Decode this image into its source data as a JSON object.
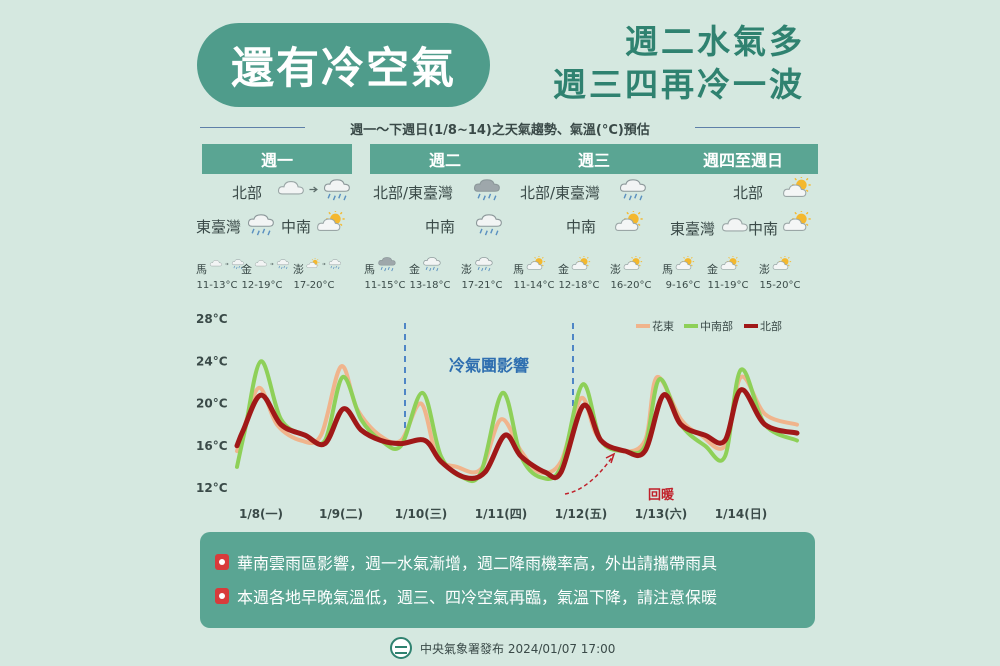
{
  "title": "還有冷空氣",
  "headline": [
    "週二水氣多",
    "週三四再冷一波"
  ],
  "subtitle": "週一～下週日(1/8~14)之天氣趨勢、氣溫(°C)預估",
  "days": [
    {
      "header": "週一",
      "regions": [
        {
          "label": "北部",
          "icons": [
            "cloud-icon",
            "arrow-icon",
            "cloud-rain-icon"
          ]
        },
        {
          "label": "東臺灣",
          "icons": [
            "cloud-rain-icon"
          ]
        },
        {
          "label": "中南",
          "icons": [
            "sun-cloud-icon"
          ]
        }
      ],
      "islands": [
        {
          "name": "馬",
          "temp": "11-13°C",
          "icons": [
            "cloud-icon",
            "arrow-icon",
            "cloud-rain-icon"
          ]
        },
        {
          "name": "金",
          "temp": "12-19°C",
          "icons": [
            "cloud-icon",
            "arrow-icon",
            "cloud-rain-icon"
          ]
        },
        {
          "name": "澎",
          "temp": "17-20°C",
          "icons": [
            "sun-cloud-icon",
            "arrow-icon",
            "cloud-rain-icon"
          ]
        }
      ]
    },
    {
      "header": "週二",
      "regions": [
        {
          "label": "北部/東臺灣",
          "icons": [
            "dark-cloud-rain-icon"
          ]
        },
        {
          "label": "中南",
          "icons": [
            "cloud-rain-icon"
          ]
        }
      ],
      "islands": [
        {
          "name": "馬",
          "temp": "11-15°C",
          "icons": [
            "dark-cloud-rain-icon"
          ]
        },
        {
          "name": "金",
          "temp": "13-18°C",
          "icons": [
            "cloud-rain-icon"
          ]
        },
        {
          "name": "澎",
          "temp": "17-21°C",
          "icons": [
            "cloud-rain-icon"
          ]
        }
      ]
    },
    {
      "header": "週三",
      "regions": [
        {
          "label": "北部/東臺灣",
          "icons": [
            "cloud-rain-icon"
          ]
        },
        {
          "label": "中南",
          "icons": [
            "sun-cloud-icon"
          ]
        }
      ],
      "islands": [
        {
          "name": "馬",
          "temp": "11-14°C",
          "icons": [
            "sun-cloud-icon"
          ]
        },
        {
          "name": "金",
          "temp": "12-18°C",
          "icons": [
            "sun-cloud-icon"
          ]
        },
        {
          "name": "澎",
          "temp": "16-20°C",
          "icons": [
            "sun-cloud-icon"
          ]
        }
      ]
    },
    {
      "header": "週四至週日",
      "regions": [
        {
          "label": "北部",
          "icons": [
            "sun-cloud-icon"
          ]
        },
        {
          "label": "東臺灣",
          "icons": [
            "cloud-icon"
          ]
        },
        {
          "label": "中南",
          "icons": [
            "sun-cloud-icon"
          ]
        }
      ],
      "islands": [
        {
          "name": "馬",
          "temp": "9-16°C",
          "icons": [
            "sun-cloud-icon"
          ]
        },
        {
          "name": "金",
          "temp": "11-19°C",
          "icons": [
            "sun-cloud-icon"
          ]
        },
        {
          "name": "澎",
          "temp": "15-20°C",
          "icons": [
            "sun-cloud-icon"
          ]
        }
      ]
    }
  ],
  "chart_data": {
    "type": "line",
    "ylim": [
      12,
      28
    ],
    "yticks": [
      12,
      16,
      20,
      24,
      28
    ],
    "ytick_labels": [
      "12°C",
      "16°C",
      "20°C",
      "24°C",
      "28°C"
    ],
    "x_range": [
      0,
      7
    ],
    "categories": [
      "1/8(一)",
      "1/9(二)",
      "1/10(三)",
      "1/11(四)",
      "1/12(五)",
      "1/13(六)",
      "1/14(日)"
    ],
    "legend_position": "top-right",
    "series": [
      {
        "name": "花東",
        "color": "#f0b48c",
        "x": [
          0,
          0.1,
          0.28,
          0.5,
          0.8,
          1.05,
          1.3,
          1.5,
          1.78,
          2.05,
          2.3,
          2.5,
          2.75,
          3.05,
          3.3,
          3.55,
          3.78,
          4.05,
          4.3,
          4.5,
          4.8,
          5.1,
          5.25,
          5.55,
          5.8,
          6.1,
          6.3,
          6.6,
          7.0
        ],
        "values": [
          15.5,
          18,
          21.5,
          18,
          16.5,
          17,
          23.5,
          19.5,
          17,
          16.5,
          20,
          15,
          14,
          13.8,
          18.5,
          15.5,
          13.5,
          14.5,
          20.5,
          17,
          15.5,
          16.5,
          22.5,
          18.5,
          17,
          16,
          22.5,
          19,
          18
        ]
      },
      {
        "name": "中南部",
        "color": "#8ed058",
        "x": [
          0,
          0.1,
          0.3,
          0.55,
          0.85,
          1.1,
          1.32,
          1.55,
          1.8,
          2.05,
          2.32,
          2.55,
          2.82,
          3.05,
          3.32,
          3.55,
          3.8,
          4.05,
          4.32,
          4.55,
          4.85,
          5.1,
          5.28,
          5.55,
          5.85,
          6.1,
          6.3,
          6.6,
          7.0
        ],
        "values": [
          14,
          17.5,
          24,
          18.5,
          17,
          16.5,
          22.5,
          18.5,
          16.5,
          16,
          21,
          15,
          13,
          13.5,
          21,
          15,
          13,
          14,
          21.8,
          16.5,
          15.5,
          16,
          22.3,
          18,
          16,
          15,
          23.2,
          18,
          16.5
        ]
      },
      {
        "name": "北部",
        "color": "#a01818",
        "x": [
          0,
          0.08,
          0.3,
          0.55,
          0.85,
          1.1,
          1.33,
          1.55,
          1.8,
          2.05,
          2.35,
          2.55,
          2.85,
          3.1,
          3.35,
          3.55,
          3.85,
          4.05,
          4.33,
          4.55,
          4.85,
          5.1,
          5.33,
          5.55,
          5.85,
          6.1,
          6.3,
          6.6,
          7.0
        ],
        "values": [
          16,
          17.5,
          20.8,
          18,
          17,
          16.2,
          19.5,
          17.5,
          16.5,
          16.2,
          16.5,
          14.5,
          13,
          13.5,
          17,
          15,
          13.5,
          13.5,
          19.8,
          16.5,
          15.5,
          15.5,
          20.8,
          18,
          17,
          16.5,
          21.3,
          18,
          17.2
        ]
      }
    ],
    "annotations": [
      {
        "text": "冷氣團影響",
        "color": "#2f6fb0"
      },
      {
        "text": "回暖",
        "color": "#c0202a"
      }
    ],
    "cold_air_span_x": [
      2.1,
      4.2
    ],
    "warming_arrow_x": [
      4.1,
      4.7
    ]
  },
  "notes": [
    "華南雲雨區影響，週一水氣漸增，週二降雨機率高，外出請攜帶雨具",
    "本週各地早晚氣溫低，週三、四冷空氣再臨，氣溫下降，請注意保暖"
  ],
  "footer": "中央氣象署發布 2024/01/07 17:00",
  "colors": {
    "background": "#d5e8e0",
    "primary": "#5aa593",
    "title_pill": "#4f9c8b",
    "headline": "#2f8270"
  }
}
